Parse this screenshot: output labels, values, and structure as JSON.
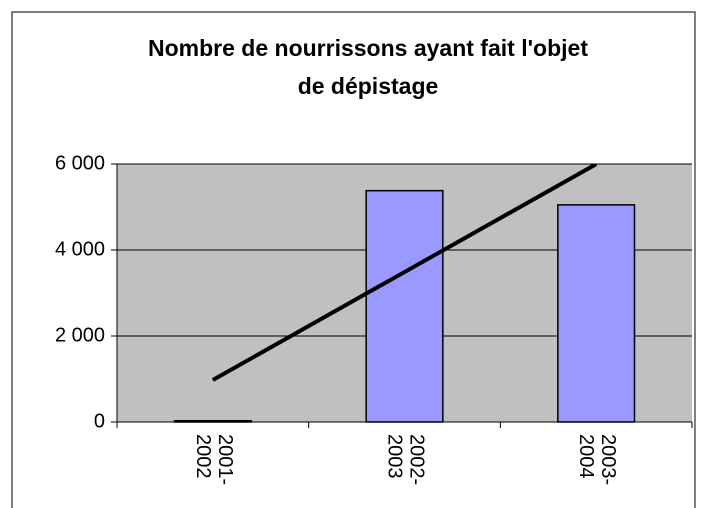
{
  "chart_data": {
    "type": "bar",
    "title": [
      "Nombre de nourrissons ayant fait l'objet",
      "de dépistage"
    ],
    "categories": [
      "2001-2002",
      "2002-2003",
      "2003-2004"
    ],
    "values": [
      30,
      5380,
      5050
    ],
    "color": "#9999ff",
    "trendline": {
      "color": "#000000",
      "values": [
        977,
        3487,
        5997
      ]
    },
    "ylim": [
      0,
      6000
    ],
    "yticks": [
      0,
      {
        "value": 2000,
        "label": "2 000"
      },
      {
        "value": 4000,
        "label": "4 000"
      },
      {
        "value": 6000,
        "label": "6 000"
      }
    ],
    "grid": true
  }
}
